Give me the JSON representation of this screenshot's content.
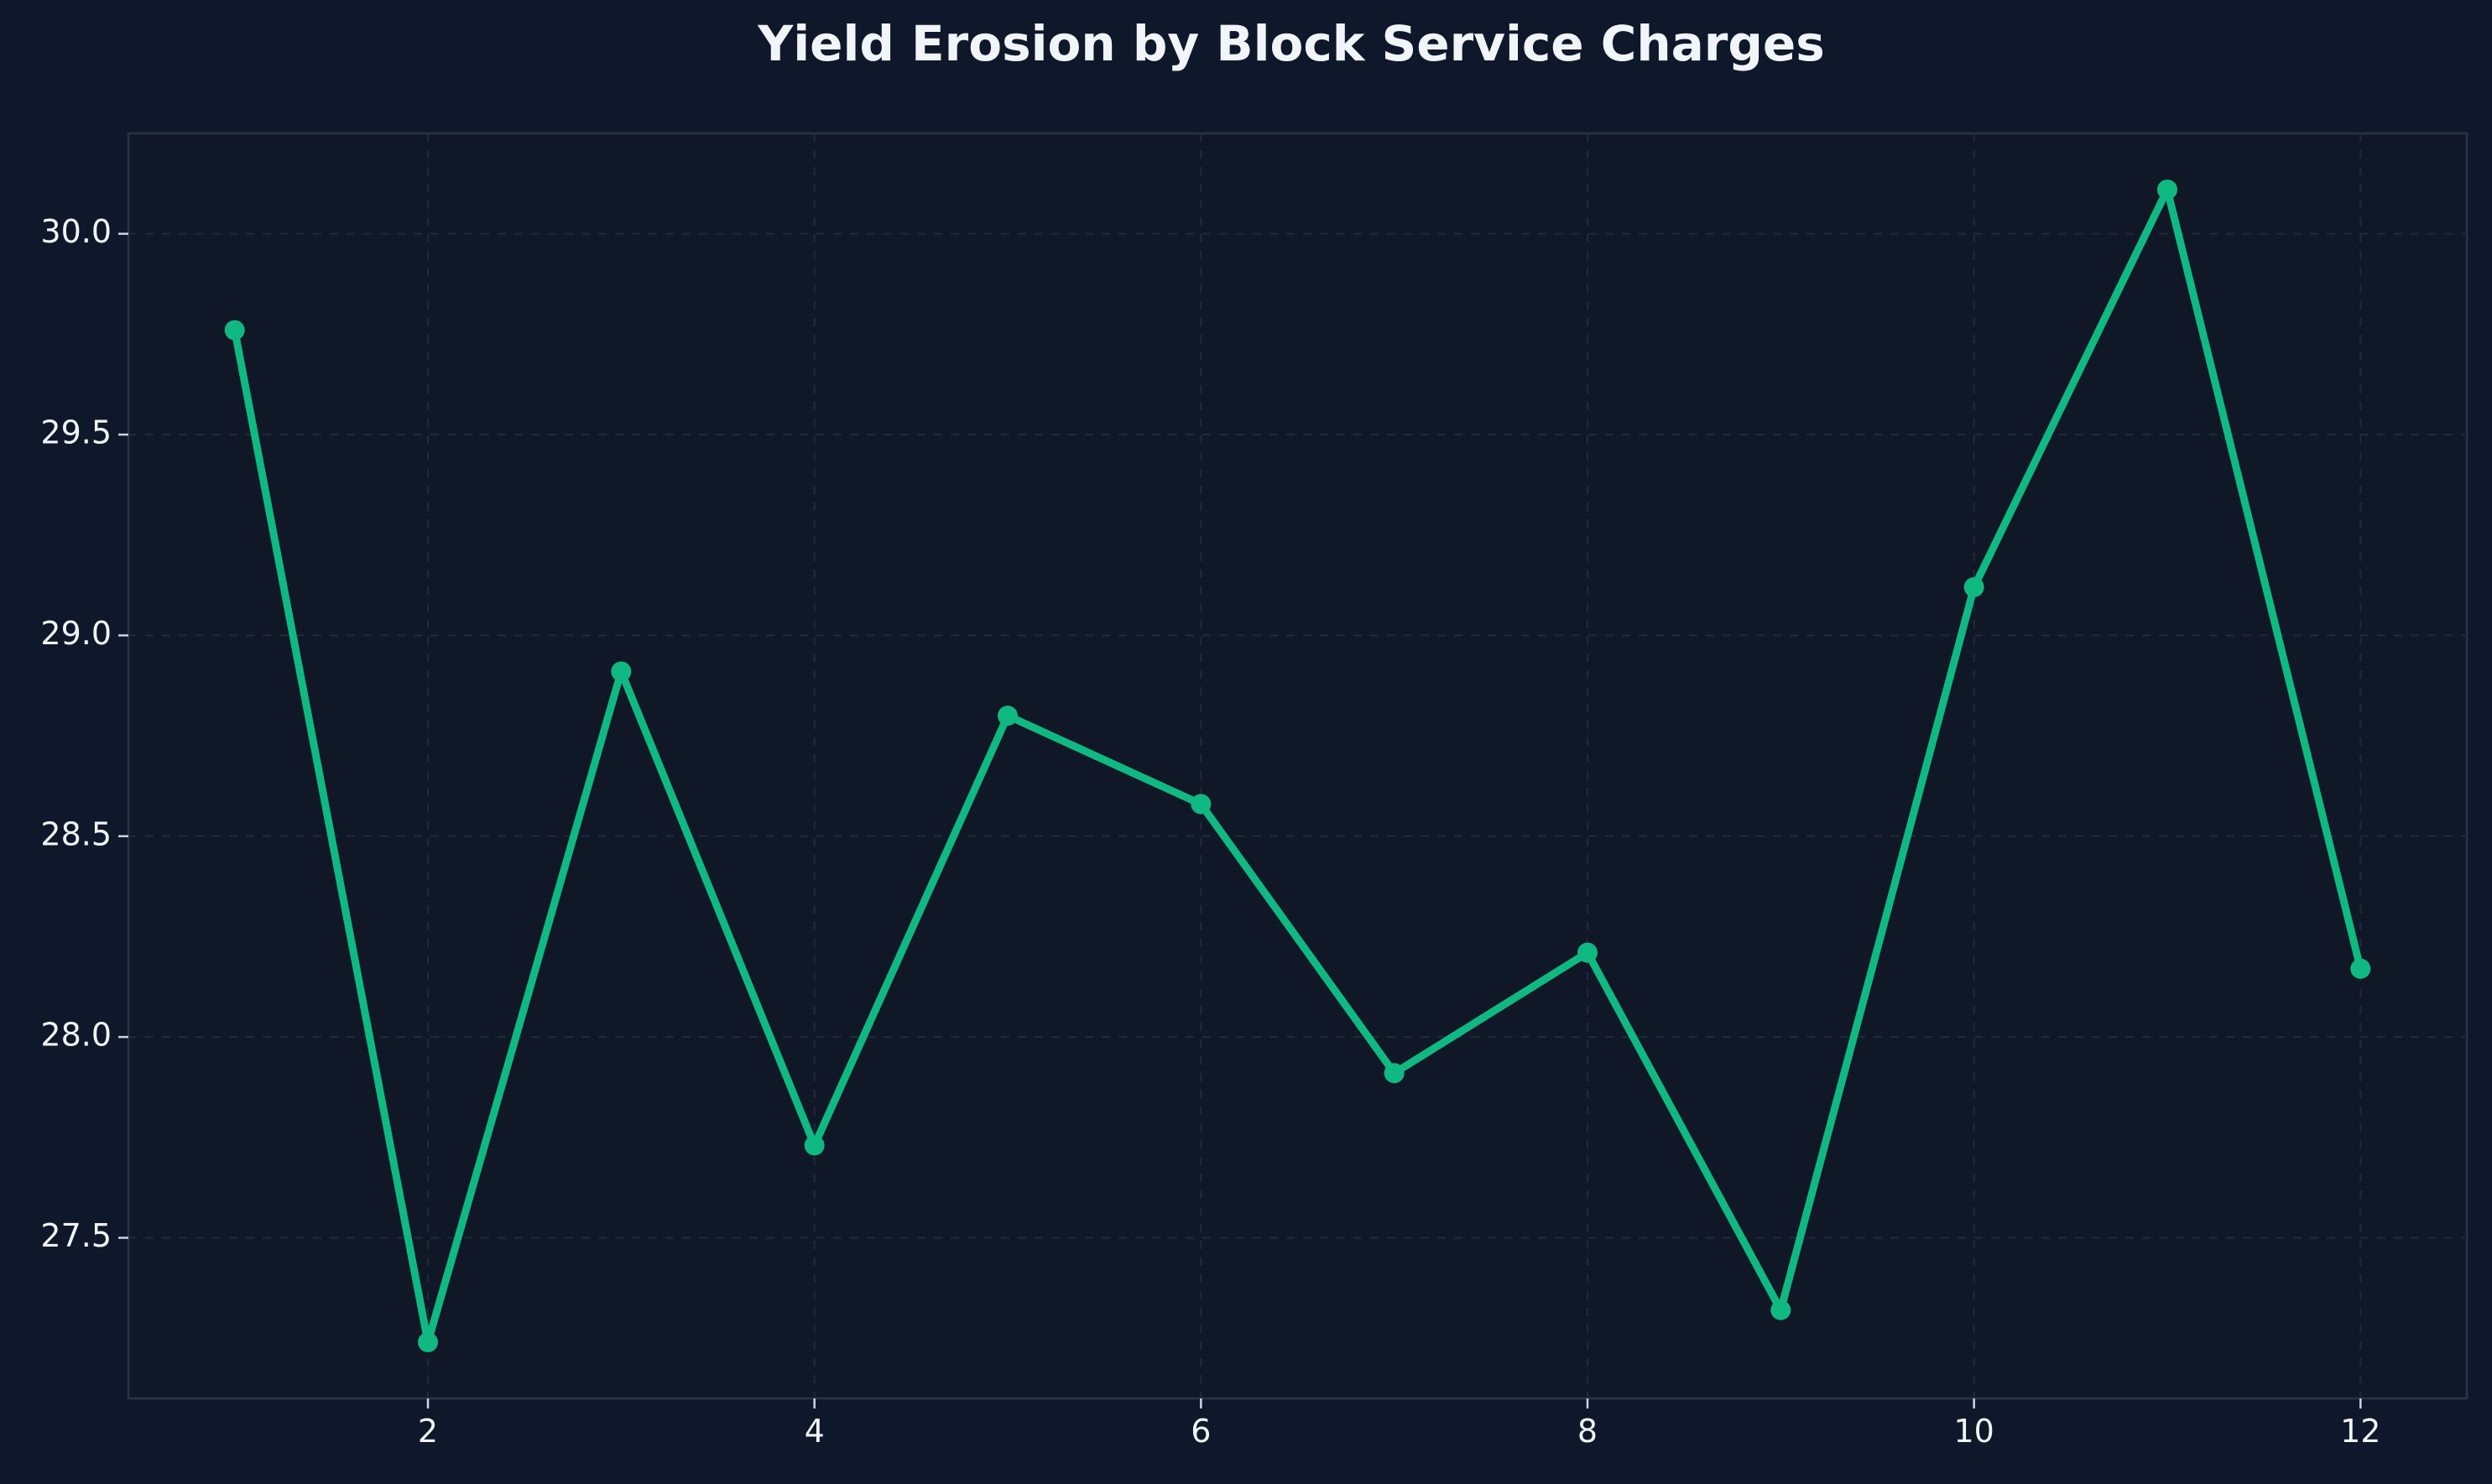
{
  "chart_data": {
    "type": "line",
    "title": "Yield Erosion by Block Service Charges",
    "xlabel": "",
    "ylabel": "",
    "x": [
      1,
      2,
      3,
      4,
      5,
      6,
      7,
      8,
      9,
      10,
      11,
      12
    ],
    "series": [
      {
        "values": [
          29.76,
          27.24,
          28.91,
          27.73,
          28.8,
          28.58,
          27.91,
          28.21,
          27.32,
          29.12,
          30.11,
          28.17
        ]
      }
    ],
    "xlim": [
      0.45,
      12.55
    ],
    "ylim": [
      27.1,
      30.25
    ],
    "xticks": [
      2,
      4,
      6,
      8,
      10,
      12
    ],
    "yticks": [
      27.5,
      28.0,
      28.5,
      29.0,
      29.5,
      30.0
    ],
    "xtick_labels": [
      "2",
      "4",
      "6",
      "8",
      "10",
      "12"
    ],
    "ytick_labels": [
      "27.5",
      "28.0",
      "28.5",
      "29.0",
      "29.5",
      "30.0"
    ],
    "grid": true,
    "legend": "none",
    "colors": {
      "background": "#0f172a",
      "axes_background": "#101827",
      "line": "#10b981",
      "text": "#f1f5f9"
    }
  }
}
